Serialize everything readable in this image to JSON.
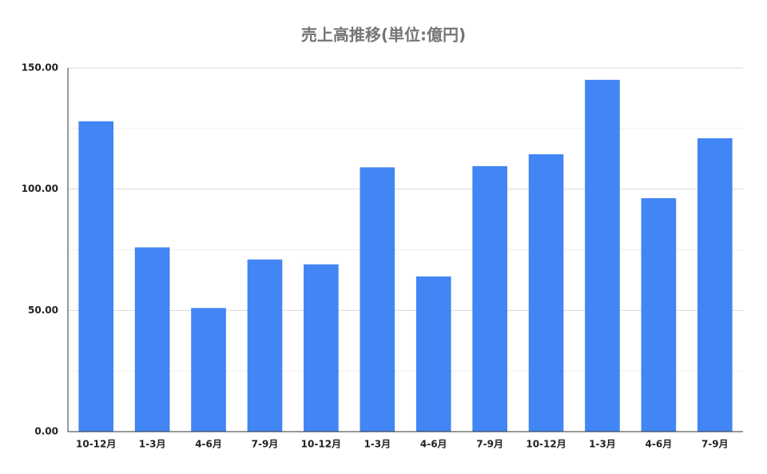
{
  "chart_data": {
    "type": "bar",
    "title": "売上高推移(単位:億円)",
    "categories": [
      "10-12月",
      "1-3月",
      "4-6月",
      "7-9月",
      "10-12月",
      "1-3月",
      "4-6月",
      "7-9月",
      "10-12月",
      "1-3月",
      "4-6月",
      "7-9月"
    ],
    "values": [
      128,
      76,
      51,
      71,
      69,
      109,
      64,
      109.5,
      114.4,
      145.1,
      96.3,
      121
    ],
    "color": "#4285f4",
    "ylim": [
      0,
      150
    ],
    "yticks": [
      {
        "value": 0,
        "label": "0.00"
      },
      {
        "value": 50,
        "label": "50.00"
      },
      {
        "value": 100,
        "label": "100.00"
      },
      {
        "value": 150,
        "label": "150.00"
      }
    ],
    "minor_yticks": [
      25,
      75,
      125
    ],
    "grid": true
  }
}
